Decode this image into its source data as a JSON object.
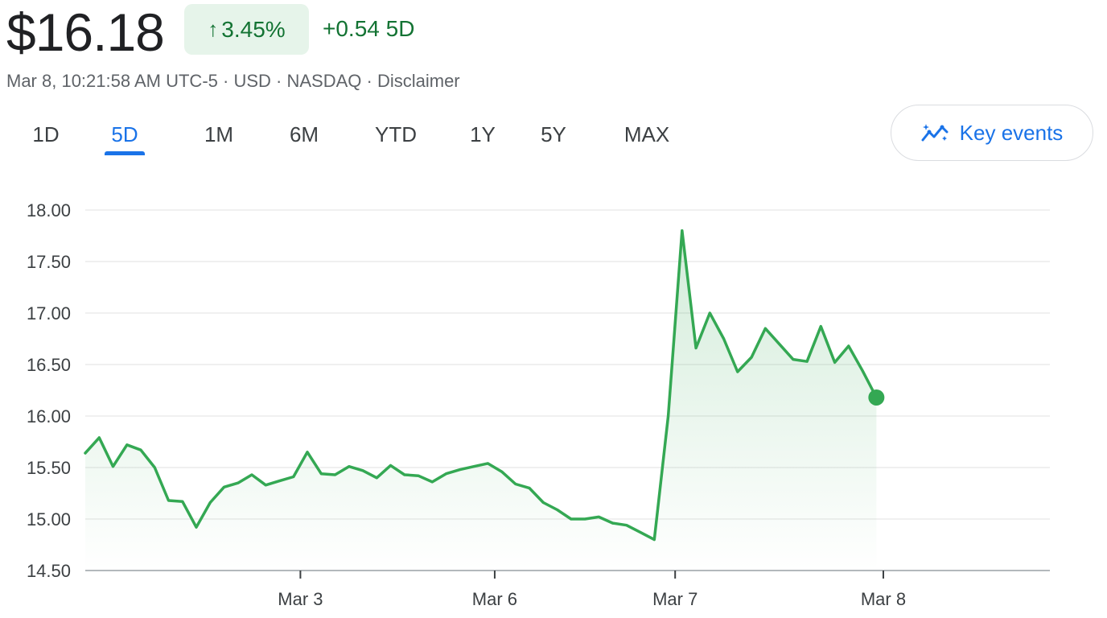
{
  "header": {
    "price": "$16.18",
    "change_pct": "3.45%",
    "change_arrow": "↑",
    "change_abs": "+0.54 5D",
    "meta_parts": {
      "timestamp": "Mar 8, 10:21:58 AM UTC-5",
      "currency": "USD",
      "exchange": "NASDAQ",
      "disclaimer": "Disclaimer"
    },
    "separator": " · "
  },
  "ranges": {
    "items": [
      "1D",
      "5D",
      "1M",
      "6M",
      "YTD",
      "1Y",
      "5Y",
      "MAX"
    ],
    "selected": "5D"
  },
  "key_events": {
    "label": "Key events",
    "icon": "sparkline-trend-icon"
  },
  "colors": {
    "up": "#137333",
    "line": "#34a853",
    "accent": "#1a73e8",
    "badge_bg": "#e6f4ea"
  },
  "chart_data": {
    "type": "area",
    "ylim": [
      14.5,
      18.0
    ],
    "yticks": [
      "18.00",
      "17.50",
      "17.00",
      "16.50",
      "16.00",
      "15.50",
      "15.00",
      "14.50"
    ],
    "ytick_values": [
      18.0,
      17.5,
      17.0,
      16.5,
      16.0,
      15.5,
      15.0,
      14.5
    ],
    "xticks": [
      {
        "label": "Mar 3",
        "x": 15.5
      },
      {
        "label": "Mar 6",
        "x": 29.5
      },
      {
        "label": "Mar 7",
        "x": 42.5
      },
      {
        "label": "Mar 8",
        "x": 57.5
      }
    ],
    "xlim": [
      0,
      69.5
    ],
    "grid": true,
    "series": [
      {
        "values": [
          15.64,
          15.79,
          15.51,
          15.72,
          15.67,
          15.5,
          15.18,
          15.17,
          14.92,
          15.16,
          15.31,
          15.35,
          15.43,
          15.33,
          15.37,
          15.41,
          15.65,
          15.44,
          15.43,
          15.51,
          15.47,
          15.4,
          15.52,
          15.43,
          15.42,
          15.36,
          15.44,
          15.48,
          15.51,
          15.54,
          15.46,
          15.34,
          15.3,
          15.16,
          15.09,
          15.0,
          15.0,
          15.02,
          14.96,
          14.94,
          14.87,
          14.8,
          16.0,
          17.8,
          16.66,
          17.0,
          16.75,
          16.43,
          16.57,
          16.85,
          16.7,
          16.55,
          16.53,
          16.87,
          16.52,
          16.68,
          16.44,
          16.18
        ],
        "last_value": 16.18
      }
    ]
  }
}
